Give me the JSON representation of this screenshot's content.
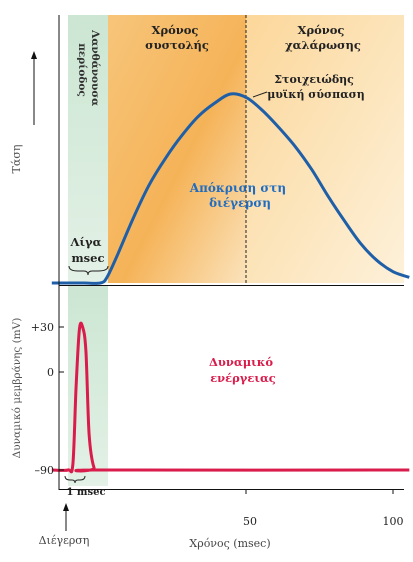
{
  "chart_data": [
    {
      "type": "line",
      "ylabel": "Τάση",
      "xlim": [
        -5,
        105
      ],
      "regions": [
        {
          "label": "Λανθάνουσα περίοδος",
          "x": [
            0,
            10
          ],
          "color": "#cfe6d4"
        },
        {
          "label": "Χρόνος συστολής",
          "x": [
            10,
            50
          ],
          "color": "#f6b559"
        },
        {
          "label": "Χρόνος χαλάρωσης",
          "x": [
            50,
            100
          ],
          "color": "#fbd99b"
        }
      ],
      "series": [
        {
          "name": "Απόκριση στη διέγερση",
          "color": "#1f5fa8",
          "x": [
            -5,
            0,
            5,
            10,
            12,
            15,
            20,
            25,
            30,
            35,
            40,
            45,
            50,
            55,
            60,
            65,
            70,
            75,
            80,
            85,
            90,
            95,
            100,
            105
          ],
          "y": [
            0,
            0,
            0,
            0,
            3,
            14,
            34,
            52,
            66,
            78,
            88,
            95,
            100,
            98,
            91,
            82,
            72,
            60,
            46,
            33,
            21,
            12,
            6,
            3
          ]
        }
      ],
      "annotations": [
        {
          "text": "Στοιχειώδης μυϊκή σύσπαση",
          "x": 50,
          "y": 100
        },
        {
          "text": "Λίγα msec",
          "x": [
            0,
            10
          ]
        }
      ],
      "vline_x": 50
    },
    {
      "type": "line",
      "xlabel": "Χρόνος (msec)",
      "ylabel": "Δυναμικό μεμβράνης (mV)",
      "xticks": [
        50,
        100
      ],
      "yticks": [
        {
          "value": 30,
          "label": "+30"
        },
        {
          "value": 0,
          "label": "0"
        },
        {
          "value": -90,
          "label": "–90"
        }
      ],
      "ylim": [
        -100,
        45
      ],
      "series": [
        {
          "name": "Δυναμικό ενέργειας",
          "color": "#d91c4b",
          "x": [
            -5,
            0,
            1.5,
            2.5,
            3.5,
            4.5,
            5.5,
            6.5,
            8,
            10,
            105
          ],
          "y": [
            -90,
            -90,
            -85,
            -20,
            28,
            30,
            10,
            -60,
            -88,
            -90,
            -90
          ]
        }
      ],
      "annotations": [
        {
          "text": "1 msec",
          "x": [
            0,
            2
          ]
        },
        {
          "text": "Διέγερση",
          "x": 0
        }
      ]
    }
  ],
  "labels": {
    "top_ylabel": "Τάση",
    "latent": "Λανθάνουσα περίοδος",
    "latent_line1": "Λανθάνουσα",
    "latent_line2": "περίοδος",
    "contraction_line1": "Χρόνος",
    "contraction_line2": "συστολής",
    "relaxation_line1": "Χρόνος",
    "relaxation_line2": "χαλάρωσης",
    "twitch_line1": "Στοιχειώδης",
    "twitch_line2": "μυϊκή σύσπαση",
    "response_line1": "Απόκριση στη",
    "response_line2": "διέγερση",
    "few_line1": "Λίγα",
    "few_line2": "msec",
    "ap_line1": "Δυναμικό",
    "ap_line2": "ενέργειας",
    "one_msec": "1 msec",
    "bottom_ylabel": "Δυναμικό μεμβράνης (mV)",
    "xlabel": "Χρόνος (msec)",
    "stimulus": "Διέγερση",
    "tick_50": "50",
    "tick_100": "100",
    "ytick_30": "+30",
    "ytick_0": "0",
    "ytick_m90": "–90"
  }
}
